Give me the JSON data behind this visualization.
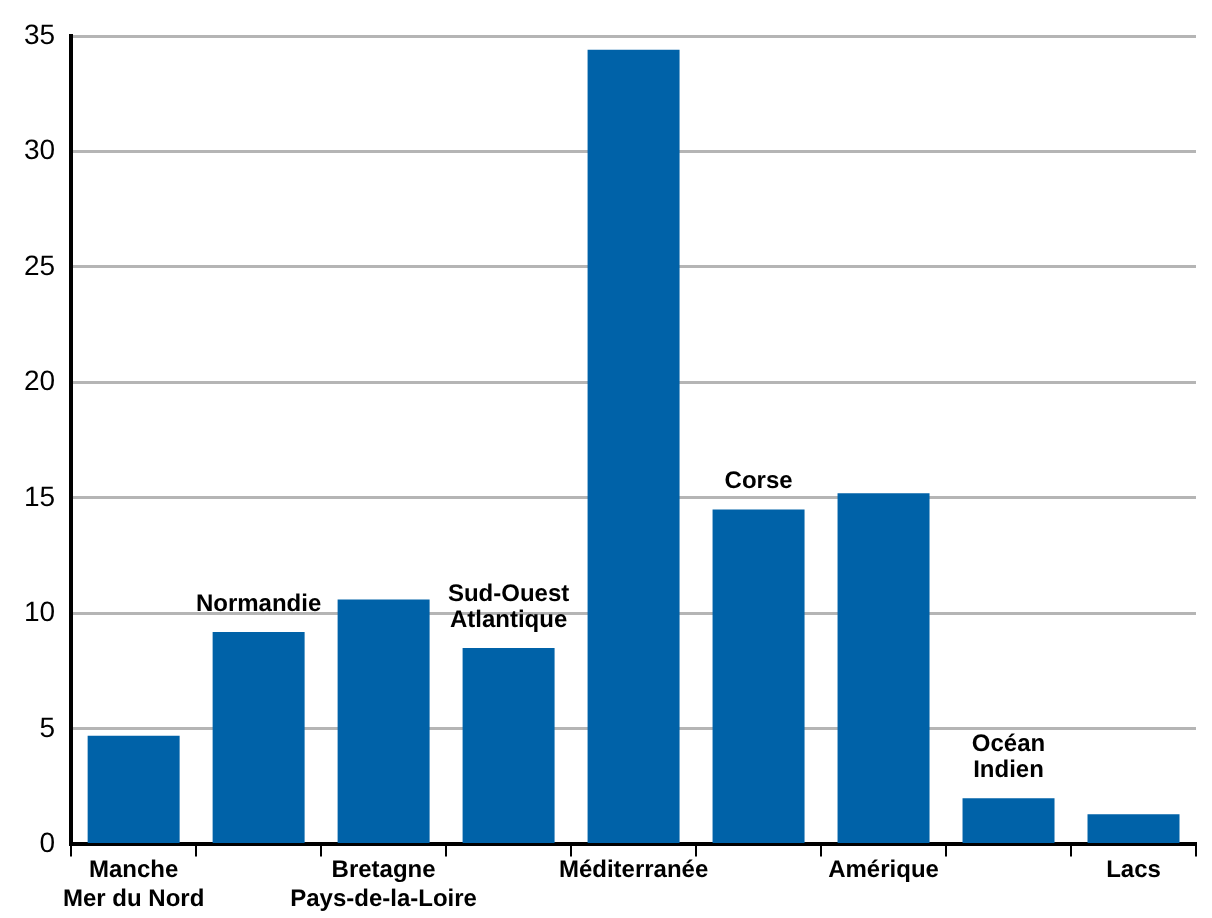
{
  "chart_data": {
    "type": "bar",
    "categories": [
      "Manche\nMer du Nord",
      "Normandie",
      "Bretagne\nPays-de-la-Loire",
      "Sud-Ouest\nAtlantique",
      "Méditerranée",
      "Corse",
      "Amérique",
      "Océan\nIndien",
      "Lacs"
    ],
    "values": [
      4.7,
      9.2,
      10.6,
      8.5,
      34.4,
      14.5,
      15.2,
      2.0,
      1.3
    ],
    "color": "#0062a8",
    "ylim": [
      0,
      35
    ],
    "yticks": [
      0,
      5,
      10,
      15,
      20,
      25,
      30,
      35
    ],
    "grid": "y"
  }
}
